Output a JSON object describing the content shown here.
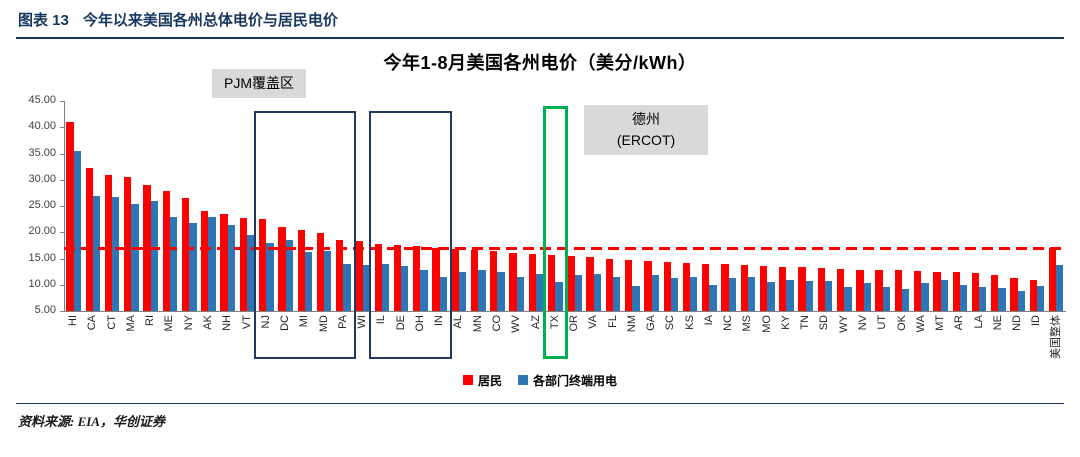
{
  "header": {
    "figure_label": "图表 13",
    "title": "今年以来美国各州总体电价与居民电价"
  },
  "chart_data": {
    "type": "bar",
    "title": "今年1-8月美国各州电价（美分/kWh）",
    "ylim": [
      5,
      45
    ],
    "yticks": [
      "45.00",
      "40.00",
      "35.00",
      "30.00",
      "25.00",
      "20.00",
      "15.00",
      "10.00",
      "5.00"
    ],
    "grid": false,
    "legend_position": "bottom",
    "categories": [
      "HI",
      "CA",
      "CT",
      "MA",
      "RI",
      "ME",
      "NY",
      "AK",
      "NH",
      "VT",
      "NJ",
      "DC",
      "MI",
      "MD",
      "PA",
      "WI",
      "IL",
      "DE",
      "OH",
      "IN",
      "AL",
      "MN",
      "CO",
      "WV",
      "AZ",
      "TX",
      "OR",
      "VA",
      "FL",
      "NM",
      "GA",
      "SC",
      "KS",
      "IA",
      "NC",
      "MS",
      "MO",
      "KY",
      "TN",
      "SD",
      "WY",
      "NV",
      "UT",
      "OK",
      "WA",
      "MT",
      "AR",
      "LA",
      "NE",
      "ND",
      "ID",
      "美国整体"
    ],
    "series": [
      {
        "name": "居民",
        "color": "#FF0000",
        "values": [
          41.0,
          32.3,
          31.0,
          30.5,
          29.0,
          27.8,
          26.5,
          24.0,
          23.5,
          22.8,
          22.5,
          21.0,
          20.5,
          19.8,
          18.6,
          18.3,
          17.8,
          17.6,
          17.3,
          17.0,
          16.8,
          16.6,
          16.4,
          16.1,
          15.9,
          15.6,
          15.4,
          15.2,
          15.0,
          14.8,
          14.6,
          14.4,
          14.2,
          14.0,
          13.9,
          13.7,
          13.6,
          13.4,
          13.3,
          13.1,
          13.0,
          12.9,
          12.8,
          12.8,
          12.6,
          12.5,
          12.4,
          12.3,
          11.9,
          11.2,
          11.0,
          17.0
        ]
      },
      {
        "name": "各部门终端用电",
        "color": "#2E75B6",
        "values": [
          35.5,
          27.0,
          26.8,
          25.3,
          26.0,
          23.0,
          21.8,
          23.0,
          21.3,
          19.5,
          18.0,
          18.5,
          16.2,
          16.5,
          14.0,
          13.8,
          13.9,
          13.6,
          12.8,
          11.5,
          12.5,
          12.9,
          12.5,
          11.5,
          12.1,
          10.5,
          11.8,
          12.0,
          11.5,
          9.8,
          11.8,
          11.3,
          11.5,
          10.0,
          11.2,
          11.5,
          10.5,
          11.0,
          10.8,
          10.8,
          9.5,
          10.3,
          9.5,
          9.2,
          10.3,
          11.0,
          10.0,
          9.6,
          9.3,
          8.8,
          9.8,
          13.8
        ]
      }
    ],
    "reference_line": {
      "value": 17.0,
      "color": "#FF0000",
      "style": "dashed"
    },
    "annotations": [
      {
        "id": "pjm-box-1",
        "shape": "box",
        "from": "NJ",
        "to": "PA",
        "color": "#1F3864",
        "border_width": 2,
        "inset_top": 10,
        "label_lines": [
          "PJM覆盖区"
        ],
        "label_pos": "above"
      },
      {
        "id": "pjm-box-2",
        "shape": "box",
        "from": "IL",
        "to": "IN",
        "color": "#1F3864",
        "border_width": 2,
        "inset_top": 10
      },
      {
        "id": "texas-box",
        "shape": "box",
        "from": "TX",
        "to": "TX",
        "color": "#00B050",
        "border_width": 3,
        "inset_top": 5,
        "label_lines": [
          "德州",
          "(ERCOT)"
        ],
        "label_pos": "right"
      }
    ]
  },
  "footer": {
    "source": "资料来源: EIA，华创证券"
  }
}
